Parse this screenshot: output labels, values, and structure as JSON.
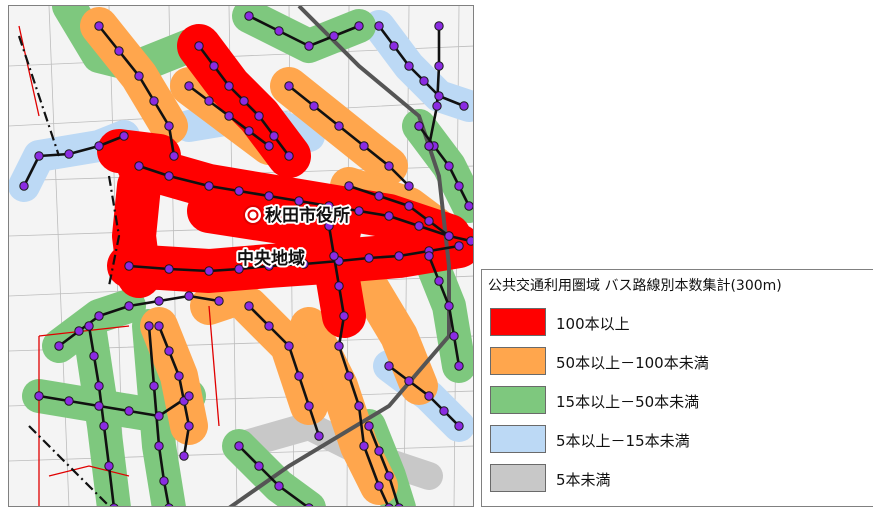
{
  "map": {
    "labels": {
      "city_hall": "秋田市役所",
      "district": "中央地域"
    },
    "city_hall_marker": "double-circle-icon"
  },
  "legend": {
    "title": "公共交通利用圏域 バス路線別本数集計(300m)",
    "items": [
      {
        "label": "100本以上",
        "color": "#ff0000"
      },
      {
        "label": "50本以上－100本未満",
        "color": "#ffa64d"
      },
      {
        "label": "15本以上－50本未満",
        "color": "#7ec87e"
      },
      {
        "label": "5本以上－15本未満",
        "color": "#bcd9f5"
      },
      {
        "label": "5本未満",
        "color": "#c8c8c8"
      }
    ]
  },
  "colors": {
    "bus_stop": "#8a2be2",
    "route_line": "#111111",
    "rail_line": "#555555",
    "boundary": "#e00000"
  }
}
